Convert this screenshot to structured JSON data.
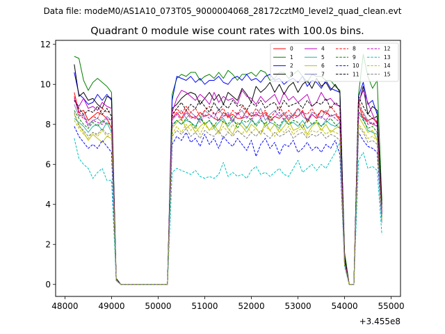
{
  "figure": {
    "suptitle": "Data file: modeM0/AS1A10_073T05_9000004068_28172cztM0_level2_quad_clean.evt",
    "offset_text": "+3.455e8"
  },
  "chart_data": {
    "type": "line",
    "title": "Quadrant 0 module wise count rates with 100.0s bins.",
    "xlabel": "",
    "ylabel": "",
    "xlim": [
      47800,
      55200
    ],
    "ylim": [
      -0.6,
      12.2
    ],
    "xticks": [
      48000,
      49000,
      50000,
      51000,
      52000,
      53000,
      54000,
      55000
    ],
    "xtick_labels": [
      "48000",
      "49000",
      "50000",
      "51000",
      "52000",
      "53000",
      "54000",
      "55000"
    ],
    "yticks": [
      0,
      2,
      4,
      6,
      8,
      10,
      12
    ],
    "ytick_labels": [
      "0",
      "2",
      "4",
      "6",
      "8",
      "10",
      "12"
    ],
    "legend_location": "upper-right",
    "x_start": 48200,
    "x_step": 100,
    "series": [
      {
        "name": "0",
        "color": "#ff0000",
        "dash": "solid",
        "values": [
          9.6,
          8.6,
          8.7,
          8.2,
          8.4,
          8.6,
          8.5,
          8.3,
          7.8,
          0.2,
          0,
          0,
          0,
          0,
          0,
          0,
          0,
          0,
          0,
          0,
          0,
          8.3,
          8.6,
          8.3,
          8.7,
          8.4,
          8.3,
          8.6,
          8.4,
          8.5,
          8.3,
          8.2,
          8.6,
          8.4,
          8.5,
          8.3,
          8.3,
          8.7,
          8.4,
          8.5,
          8.4,
          8.6,
          8.2,
          8.4,
          8.3,
          8.5,
          8.2,
          8.5,
          8.4,
          8.7,
          8.1,
          8.5,
          8.3,
          8.7,
          8.6,
          8.4,
          8.5,
          8.2,
          1.2,
          0,
          0,
          9.0,
          8.3,
          8.2,
          8.3,
          8.1,
          3.8
        ]
      },
      {
        "name": "1",
        "color": "#008000",
        "dash": "solid",
        "values": [
          11.4,
          11.3,
          10.2,
          9.7,
          10.1,
          10.3,
          10.1,
          9.9,
          9.6,
          0.3,
          0,
          0,
          0,
          0,
          0,
          0,
          0,
          0,
          0,
          0,
          0,
          9.5,
          10.3,
          10.5,
          10.4,
          10.6,
          10.6,
          10.2,
          10.4,
          10.5,
          10.3,
          10.6,
          10.3,
          10.7,
          10.5,
          10.2,
          10.5,
          10.5,
          10.6,
          10.4,
          10.7,
          10.6,
          10.2,
          10.3,
          10.6,
          10.6,
          10.3,
          10.5,
          10.7,
          10.4,
          10.1,
          10.5,
          10.4,
          10.4,
          10.2,
          10.2,
          9.9,
          9.7,
          1.6,
          0,
          0,
          9.5,
          11.5,
          10.4,
          9.8,
          10.2,
          4.2
        ]
      },
      {
        "name": "2",
        "color": "#0000ff",
        "dash": "solid",
        "values": [
          10.6,
          9.5,
          9.3,
          9.0,
          9.1,
          9.5,
          9.2,
          9.5,
          9.2,
          0.2,
          0,
          0,
          0,
          0,
          0,
          0,
          0,
          0,
          0,
          0,
          0,
          9.2,
          10.4,
          10.3,
          10.2,
          10.4,
          10.1,
          10.3,
          10.0,
          10.2,
          10.2,
          10.4,
          10.1,
          10.0,
          10.3,
          10.4,
          10.2,
          10.5,
          10.2,
          10.3,
          10.1,
          10.4,
          10.5,
          10.2,
          10.3,
          10.0,
          10.2,
          10.3,
          10.1,
          10.4,
          9.9,
          10.2,
          10.1,
          9.8,
          10.2,
          9.8,
          9.7,
          9.6,
          1.3,
          0,
          0,
          9.4,
          10.1,
          9.0,
          9.2,
          8.5,
          3.5
        ]
      },
      {
        "name": "3",
        "color": "#000000",
        "dash": "solid",
        "values": [
          11.0,
          9.4,
          9.6,
          9.2,
          9.3,
          9.0,
          8.8,
          9.4,
          9.3,
          0.3,
          0,
          0,
          0,
          0,
          0,
          0,
          0,
          0,
          0,
          0,
          0,
          8.8,
          9.0,
          9.3,
          9.5,
          9.6,
          9.5,
          9.0,
          9.3,
          9.6,
          9.2,
          9.5,
          9.0,
          9.6,
          9.4,
          9.2,
          9.8,
          9.5,
          9.1,
          9.9,
          9.6,
          9.8,
          10.1,
          9.6,
          10.0,
          9.5,
          9.9,
          10.1,
          9.6,
          10.0,
          10.2,
          9.8,
          10.3,
          9.9,
          10.1,
          9.7,
          10.0,
          9.6,
          1.4,
          0,
          0,
          9.0,
          9.9,
          8.5,
          8.9,
          8.7,
          4.0
        ]
      },
      {
        "name": "4",
        "color": "#bf00bf",
        "dash": "solid",
        "values": [
          9.2,
          8.9,
          9.3,
          8.8,
          8.9,
          8.7,
          9.1,
          8.9,
          8.8,
          0.2,
          0,
          0,
          0,
          0,
          0,
          0,
          0,
          0,
          0,
          0,
          0,
          8.6,
          9.3,
          9.7,
          9.6,
          9.4,
          9.2,
          9.5,
          9.3,
          9.0,
          9.6,
          9.1,
          9.4,
          9.2,
          9.3,
          9.0,
          9.7,
          9.4,
          9.3,
          9.0,
          9.4,
          9.1,
          9.3,
          9.5,
          9.0,
          9.6,
          9.2,
          9.4,
          9.1,
          9.3,
          9.5,
          8.9,
          9.1,
          9.6,
          9.2,
          9.3,
          9.0,
          8.9,
          1.2,
          0,
          0,
          9.1,
          9.7,
          9.1,
          8.5,
          8.0,
          3.6
        ]
      },
      {
        "name": "5",
        "color": "#20b2aa",
        "dash": "solid",
        "values": [
          8.3,
          8.1,
          7.9,
          7.6,
          7.9,
          8.0,
          7.7,
          8.1,
          7.6,
          0.2,
          0,
          0,
          0,
          0,
          0,
          0,
          0,
          0,
          0,
          0,
          0,
          8.0,
          8.2,
          8.0,
          8.2,
          8.1,
          7.9,
          8.3,
          8.0,
          8.2,
          7.8,
          8.1,
          8.3,
          7.9,
          8.2,
          8.0,
          8.1,
          7.8,
          8.2,
          8.0,
          8.3,
          7.9,
          8.1,
          8.0,
          7.8,
          8.2,
          8.0,
          8.1,
          7.9,
          8.2,
          7.8,
          8.0,
          8.1,
          7.9,
          8.2,
          8.0,
          7.9,
          8.1,
          1.0,
          0,
          0,
          8.5,
          8.3,
          7.7,
          7.6,
          7.5,
          3.4
        ]
      },
      {
        "name": "6",
        "color": "#bfbf00",
        "dash": "solid",
        "values": [
          8.5,
          8.0,
          7.6,
          7.2,
          7.5,
          7.3,
          7.1,
          7.4,
          7.3,
          0.2,
          0,
          0,
          0,
          0,
          0,
          0,
          0,
          0,
          0,
          0,
          0,
          7.8,
          8.1,
          8.3,
          7.8,
          8.0,
          7.6,
          7.9,
          8.1,
          7.7,
          8.0,
          7.6,
          8.2,
          7.8,
          7.5,
          8.1,
          7.9,
          7.6,
          8.0,
          7.8,
          7.5,
          8.1,
          7.7,
          8.0,
          7.6,
          7.9,
          8.2,
          7.7,
          7.8,
          8.0,
          7.5,
          7.9,
          8.1,
          7.7,
          8.0,
          7.6,
          7.8,
          7.9,
          1.1,
          0,
          0,
          8.4,
          8.0,
          7.6,
          7.7,
          7.2,
          3.3
        ]
      },
      {
        "name": "7",
        "color": "#7f7fbf",
        "dash": "solid",
        "values": [
          9.0,
          8.4,
          8.5,
          8.0,
          8.2,
          8.3,
          8.1,
          8.4,
          8.2,
          0.2,
          0,
          0,
          0,
          0,
          0,
          0,
          0,
          0,
          0,
          0,
          0,
          8.2,
          8.5,
          8.7,
          8.3,
          8.6,
          8.4,
          8.2,
          8.7,
          8.5,
          8.3,
          8.8,
          8.4,
          8.6,
          8.2,
          8.5,
          8.7,
          8.3,
          8.6,
          8.4,
          8.8,
          8.2,
          8.5,
          8.7,
          8.4,
          8.6,
          8.3,
          8.5,
          8.8,
          8.4,
          8.2,
          8.6,
          8.5,
          8.3,
          8.7,
          8.4,
          8.5,
          8.3,
          1.2,
          0,
          0,
          8.9,
          8.6,
          8.2,
          8.0,
          7.9,
          3.5
        ]
      },
      {
        "name": "8",
        "color": "#ff0000",
        "dash": "dashed",
        "values": [
          9.4,
          8.5,
          8.3,
          8.2,
          8.4,
          8.3,
          8.8,
          8.6,
          8.7,
          0.2,
          0,
          0,
          0,
          0,
          0,
          0,
          0,
          0,
          0,
          0,
          0,
          8.4,
          8.8,
          8.5,
          8.9,
          8.6,
          8.8,
          8.4,
          8.7,
          8.9,
          8.5,
          8.6,
          8.8,
          8.3,
          8.7,
          8.5,
          8.9,
          8.6,
          8.4,
          8.8,
          8.5,
          8.7,
          8.3,
          8.6,
          8.9,
          8.5,
          8.7,
          8.4,
          8.8,
          8.6,
          8.5,
          8.8,
          8.4,
          8.7,
          8.5,
          8.9,
          8.6,
          8.3,
          1.3,
          0,
          0,
          9.2,
          8.5,
          8.1,
          8.0,
          8.2,
          3.6
        ]
      },
      {
        "name": "9",
        "color": "#008000",
        "dash": "dashed",
        "values": [
          8.7,
          8.3,
          8.0,
          7.8,
          8.1,
          7.9,
          8.2,
          8.0,
          8.1,
          0.2,
          0,
          0,
          0,
          0,
          0,
          0,
          0,
          0,
          0,
          0,
          0,
          7.9,
          8.2,
          8.0,
          8.3,
          8.1,
          7.8,
          8.4,
          8.0,
          8.2,
          7.9,
          8.3,
          8.1,
          8.0,
          8.4,
          7.8,
          8.2,
          8.1,
          8.3,
          7.9,
          8.2,
          8.0,
          8.4,
          8.1,
          7.9,
          8.3,
          8.0,
          8.2,
          8.1,
          7.8,
          8.3,
          8.0,
          8.2,
          7.9,
          8.1,
          8.3,
          8.0,
          7.8,
          1.1,
          0,
          0,
          8.7,
          8.2,
          7.8,
          7.9,
          7.6,
          3.4
        ]
      },
      {
        "name": "10",
        "color": "#0000ff",
        "dash": "dashed",
        "values": [
          7.9,
          7.4,
          7.1,
          6.8,
          7.0,
          6.8,
          7.2,
          6.9,
          6.6,
          0.2,
          0,
          0,
          0,
          0,
          0,
          0,
          0,
          0,
          0,
          0,
          0,
          7.0,
          7.4,
          7.2,
          7.6,
          7.1,
          7.3,
          6.9,
          7.5,
          7.0,
          7.3,
          6.8,
          7.4,
          7.1,
          6.9,
          7.3,
          7.0,
          6.7,
          7.2,
          6.4,
          7.0,
          7.3,
          6.8,
          7.1,
          6.5,
          7.0,
          6.9,
          7.2,
          6.6,
          6.8,
          7.1,
          6.7,
          6.9,
          6.6,
          7.0,
          6.8,
          7.2,
          6.5,
          1.0,
          0,
          0,
          7.6,
          7.2,
          6.9,
          6.8,
          6.6,
          3.1
        ]
      },
      {
        "name": "11",
        "color": "#000000",
        "dash": "dashed",
        "values": [
          9.2,
          8.8,
          8.5,
          8.7,
          8.6,
          8.9,
          8.5,
          8.8,
          8.4,
          0.2,
          0,
          0,
          0,
          0,
          0,
          0,
          0,
          0,
          0,
          0,
          0,
          8.5,
          8.8,
          9.1,
          8.7,
          9.0,
          8.8,
          9.2,
          8.9,
          8.6,
          9.1,
          8.7,
          9.0,
          8.8,
          9.2,
          8.9,
          9.0,
          8.7,
          9.1,
          8.9,
          9.2,
          8.8,
          9.0,
          9.1,
          8.7,
          9.2,
          8.9,
          9.0,
          9.1,
          8.8,
          9.2,
          8.9,
          9.1,
          9.0,
          9.3,
          8.8,
          9.1,
          8.9,
          1.3,
          0,
          0,
          9.4,
          8.9,
          8.5,
          8.3,
          8.4,
          3.7
        ]
      },
      {
        "name": "12",
        "color": "#bf00bf",
        "dash": "dashed",
        "values": [
          9.3,
          8.6,
          8.4,
          7.9,
          8.2,
          8.1,
          8.0,
          8.3,
          8.2,
          0.2,
          0,
          0,
          0,
          0,
          0,
          0,
          0,
          0,
          0,
          0,
          0,
          8.3,
          8.5,
          8.2,
          8.6,
          8.3,
          8.4,
          8.1,
          8.5,
          8.3,
          8.6,
          8.2,
          8.4,
          8.5,
          8.1,
          8.6,
          8.3,
          8.4,
          8.2,
          8.6,
          8.3,
          8.5,
          8.1,
          8.4,
          8.6,
          8.2,
          8.5,
          8.3,
          8.4,
          8.6,
          8.2,
          8.5,
          8.3,
          8.4,
          8.2,
          8.5,
          8.3,
          8.1,
          1.2,
          0,
          0,
          8.6,
          8.4,
          8.0,
          8.1,
          7.9,
          3.5
        ]
      },
      {
        "name": "13",
        "color": "#00bfbf",
        "dash": "dashed",
        "values": [
          7.3,
          6.3,
          6.0,
          5.8,
          5.3,
          5.6,
          5.8,
          5.2,
          5.2,
          0.2,
          0,
          0,
          0,
          0,
          0,
          0,
          0,
          0,
          0,
          0,
          0,
          5.6,
          5.8,
          5.7,
          5.6,
          5.5,
          5.7,
          5.4,
          5.3,
          5.4,
          5.3,
          5.5,
          6.1,
          5.4,
          5.6,
          5.4,
          5.5,
          5.3,
          5.7,
          5.9,
          5.5,
          5.6,
          5.4,
          5.6,
          5.8,
          5.5,
          5.4,
          5.8,
          6.2,
          5.6,
          5.8,
          6.0,
          5.7,
          6.0,
          5.8,
          6.2,
          6.6,
          7.1,
          0.9,
          0,
          0,
          6.2,
          6.6,
          5.8,
          5.9,
          5.7,
          2.5
        ]
      },
      {
        "name": "14",
        "color": "#bfbf00",
        "dash": "dashed",
        "values": [
          8.2,
          7.8,
          7.5,
          7.3,
          7.6,
          7.4,
          7.7,
          7.4,
          7.5,
          0.2,
          0,
          0,
          0,
          0,
          0,
          0,
          0,
          0,
          0,
          0,
          0,
          7.5,
          7.9,
          7.6,
          8.0,
          7.7,
          7.9,
          7.5,
          8.0,
          7.7,
          7.8,
          7.5,
          7.9,
          7.6,
          8.0,
          7.7,
          7.5,
          7.9,
          7.6,
          7.8,
          7.5,
          7.9,
          7.7,
          7.4,
          7.8,
          7.6,
          7.9,
          7.5,
          7.7,
          7.8,
          7.4,
          7.7,
          7.6,
          7.8,
          7.5,
          7.7,
          7.6,
          7.5,
          1.0,
          0,
          0,
          8.0,
          7.7,
          7.3,
          7.4,
          7.2,
          3.2
        ]
      },
      {
        "name": "15",
        "color": "#7f7f7f",
        "dash": "dashed",
        "values": [
          8.6,
          7.9,
          7.7,
          7.4,
          7.6,
          7.5,
          7.8,
          7.5,
          7.6,
          0.2,
          0,
          0,
          0,
          0,
          0,
          0,
          0,
          0,
          0,
          0,
          0,
          7.4,
          7.7,
          7.5,
          7.8,
          7.4,
          7.6,
          7.3,
          7.7,
          7.5,
          7.4,
          7.7,
          7.3,
          7.6,
          7.4,
          7.7,
          7.5,
          7.3,
          7.6,
          7.4,
          7.7,
          7.5,
          7.3,
          7.6,
          7.4,
          7.5,
          7.7,
          7.3,
          7.5,
          7.6,
          7.3,
          7.5,
          7.4,
          7.6,
          7.3,
          7.5,
          7.4,
          7.2,
          1.0,
          0,
          0,
          7.9,
          7.6,
          7.1,
          7.2,
          7.0,
          3.1
        ]
      }
    ]
  }
}
